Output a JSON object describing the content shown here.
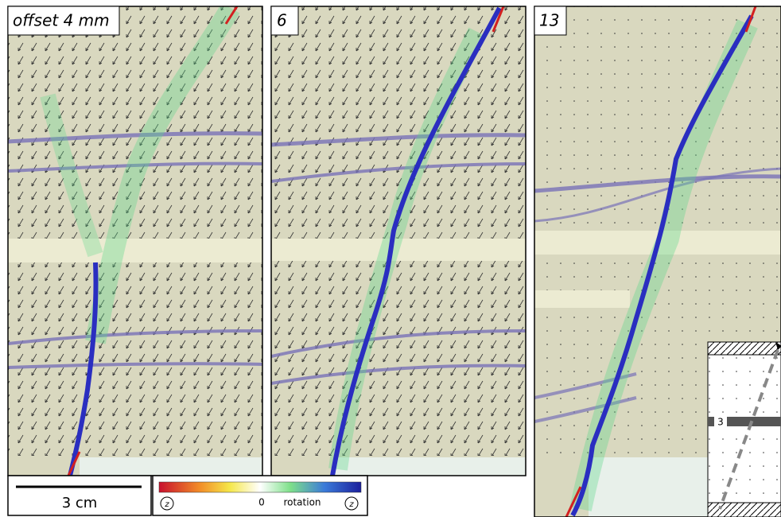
{
  "panels": [
    {
      "label": "offset 4 mm"
    },
    {
      "label": "6"
    },
    {
      "label": "13"
    }
  ],
  "scale_bar": {
    "label": "3 cm"
  },
  "colorbar": {
    "zero_label": "0",
    "title": "rotation",
    "left_symbol": "z",
    "right_symbol": "z"
  },
  "inset": {
    "layer_label": "3"
  }
}
